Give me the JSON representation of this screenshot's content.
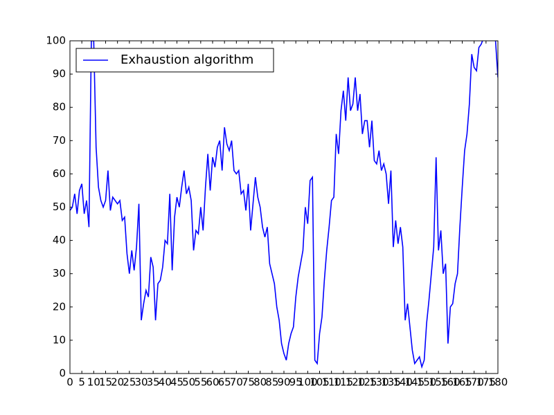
{
  "chart_data": {
    "type": "line",
    "x": [
      0,
      1,
      2,
      3,
      4,
      5,
      6,
      7,
      8,
      9,
      10,
      11,
      12,
      13,
      14,
      15,
      16,
      17,
      18,
      19,
      20,
      21,
      22,
      23,
      24,
      25,
      26,
      27,
      28,
      29,
      30,
      31,
      32,
      33,
      34,
      35,
      36,
      37,
      38,
      39,
      40,
      41,
      42,
      43,
      44,
      45,
      46,
      47,
      48,
      49,
      50,
      51,
      52,
      53,
      54,
      55,
      56,
      57,
      58,
      59,
      60,
      61,
      62,
      63,
      64,
      65,
      66,
      67,
      68,
      69,
      70,
      71,
      72,
      73,
      74,
      75,
      76,
      77,
      78,
      79,
      80,
      81,
      82,
      83,
      84,
      85,
      86,
      87,
      88,
      89,
      90,
      91,
      92,
      93,
      94,
      95,
      96,
      97,
      98,
      99,
      100,
      101,
      102,
      103,
      104,
      105,
      106,
      107,
      108,
      109,
      110,
      111,
      112,
      113,
      114,
      115,
      116,
      117,
      118,
      119,
      120,
      121,
      122,
      123,
      124,
      125,
      126,
      127,
      128,
      129,
      130,
      131,
      132,
      133,
      134,
      135,
      136,
      137,
      138,
      139,
      140,
      141,
      142,
      143,
      144,
      145,
      146,
      147,
      148,
      149,
      150,
      151,
      152,
      153,
      154,
      155,
      156,
      157,
      158,
      159,
      160,
      161,
      162,
      163,
      164,
      165,
      166,
      167,
      168,
      169,
      170,
      171,
      172,
      173,
      174,
      175,
      176,
      177,
      178,
      179,
      180
    ],
    "series": [
      {
        "name": "Exhaustion algorithm",
        "color": "#0000ff",
        "values": [
          49,
          50,
          54,
          48,
          55,
          57,
          48,
          52,
          44,
          100,
          100,
          68,
          56,
          52,
          50,
          52,
          61,
          49,
          53,
          52,
          51,
          52,
          46,
          47,
          36,
          30,
          37,
          31,
          38,
          51,
          16,
          21,
          25,
          23,
          35,
          32,
          16,
          27,
          28,
          32,
          40,
          39,
          54,
          31,
          47,
          53,
          50,
          56,
          61,
          54,
          56,
          52,
          37,
          43,
          42,
          50,
          43,
          56,
          66,
          55,
          65,
          62,
          68,
          70,
          61,
          74,
          69,
          67,
          70,
          61,
          60,
          61,
          54,
          55,
          49,
          57,
          43,
          51,
          59,
          53,
          50,
          44,
          41,
          44,
          33,
          30,
          27,
          20,
          16,
          9,
          6,
          4,
          9,
          12,
          14,
          23,
          29,
          33,
          37,
          50,
          45,
          58,
          59,
          4,
          3,
          12,
          17,
          28,
          37,
          44,
          52,
          53,
          72,
          66,
          79,
          85,
          76,
          89,
          79,
          81,
          89,
          79,
          84,
          72,
          76,
          76,
          68,
          76,
          64,
          63,
          67,
          61,
          63,
          60,
          51,
          61,
          38,
          46,
          39,
          44,
          38,
          16,
          21,
          14,
          7,
          3,
          4,
          5,
          2,
          4,
          15,
          22,
          30,
          38,
          65,
          37,
          43,
          30,
          33,
          9,
          20,
          21,
          27,
          30,
          44,
          56,
          67,
          72,
          81,
          96,
          92,
          91,
          98,
          99,
          101,
          104,
          105,
          106,
          104,
          100,
          89
        ]
      }
    ],
    "xlim": [
      0,
      180
    ],
    "xticks": [
      0,
      5,
      10,
      15,
      20,
      25,
      30,
      35,
      40,
      45,
      50,
      55,
      60,
      65,
      70,
      75,
      80,
      85,
      90,
      95,
      100,
      105,
      110,
      115,
      120,
      125,
      130,
      135,
      140,
      145,
      150,
      155,
      160,
      165,
      170,
      175,
      180
    ],
    "ylim": [
      0,
      100
    ],
    "yticks": [
      0,
      10,
      20,
      30,
      40,
      50,
      60,
      70,
      80,
      90,
      100
    ],
    "legend": "upper left"
  }
}
